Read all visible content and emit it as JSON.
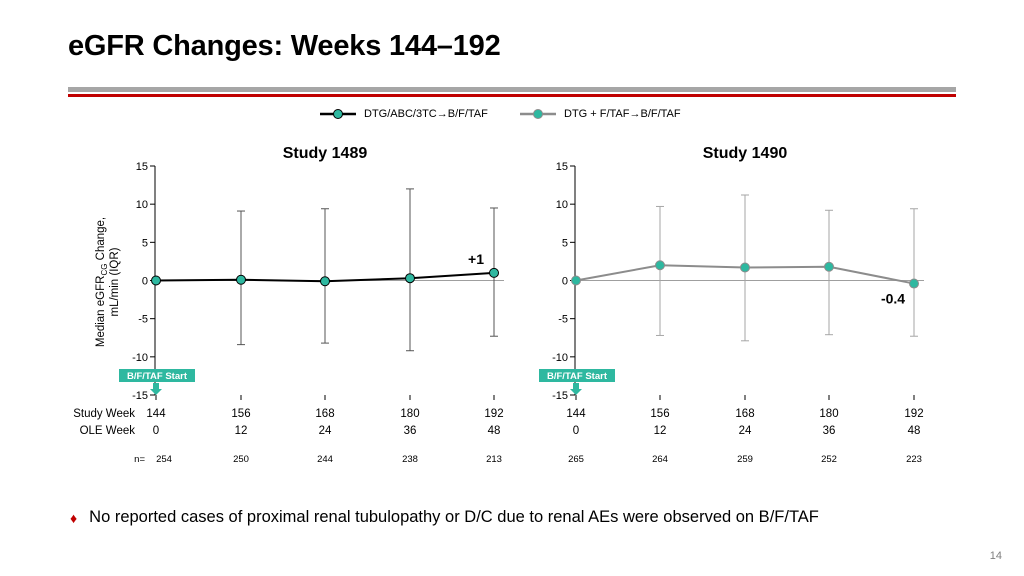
{
  "title": "eGFR Changes: Weeks 144–192",
  "legend": [
    {
      "label": "DTG/ABC/3TC→B/F/TAF",
      "color": "#000000",
      "marker": "#2eb8a0"
    },
    {
      "label": "DTG + F/TAF→B/F/TAF",
      "color": "#8c8c8c",
      "marker": "#2eb8a0"
    }
  ],
  "bullet": "No reported cases of proximal renal tubulopathy or D/C due to renal AEs were observed on B/F/TAF",
  "page_number": "14",
  "chart_data": [
    {
      "type": "line",
      "title": "Study 1489",
      "ylabel": "Median eGFR",
      "ylabel_sub": "CG",
      "ylabel_rest": " Change,",
      "ylabel_line2": "mL/min (IQR)",
      "ylim": [
        -15,
        15
      ],
      "yticks": [
        "15",
        "10",
        "5",
        "0",
        "-5",
        "-10",
        "-15"
      ],
      "ytick_values": [
        15,
        10,
        5,
        0,
        -5,
        -10,
        -15
      ],
      "x_row_labels": [
        "Study Week",
        "OLE Week",
        "n="
      ],
      "study_week": [
        "144",
        "156",
        "168",
        "180",
        "192"
      ],
      "ole_week": [
        "0",
        "12",
        "24",
        "36",
        "48"
      ],
      "n": [
        "254",
        "250",
        "244",
        "238",
        "213"
      ],
      "series": [
        {
          "name": "DTG/ABC/3TC→B/F/TAF",
          "color": "#000000",
          "values": [
            0,
            0.1,
            -0.1,
            0.3,
            1
          ],
          "lower": [
            0,
            -8.4,
            -8.2,
            -9.2,
            -7.3
          ],
          "upper": [
            0,
            9.1,
            9.4,
            12,
            9.5
          ]
        }
      ],
      "annotation": {
        "text": "+1",
        "point": 4
      },
      "start_label": "B/F/TAF Start"
    },
    {
      "type": "line",
      "title": "Study 1490",
      "ylim": [
        -15,
        15
      ],
      "yticks": [
        "15",
        "10",
        "5",
        "0",
        "-5",
        "-10",
        "-15"
      ],
      "ytick_values": [
        15,
        10,
        5,
        0,
        -5,
        -10,
        -15
      ],
      "study_week": [
        "144",
        "156",
        "168",
        "180",
        "192"
      ],
      "ole_week": [
        "0",
        "12",
        "24",
        "36",
        "48"
      ],
      "n": [
        "265",
        "264",
        "259",
        "252",
        "223"
      ],
      "series": [
        {
          "name": "DTG + F/TAF→B/F/TAF",
          "color": "#8c8c8c",
          "values": [
            0,
            2,
            1.7,
            1.8,
            -0.4
          ],
          "lower": [
            0,
            -7.2,
            -7.9,
            -7.1,
            -7.3
          ],
          "upper": [
            0,
            9.7,
            11.2,
            9.2,
            9.4
          ]
        }
      ],
      "annotation": {
        "text": "-0.4",
        "point": 4
      },
      "start_label": "B/F/TAF Start"
    }
  ]
}
